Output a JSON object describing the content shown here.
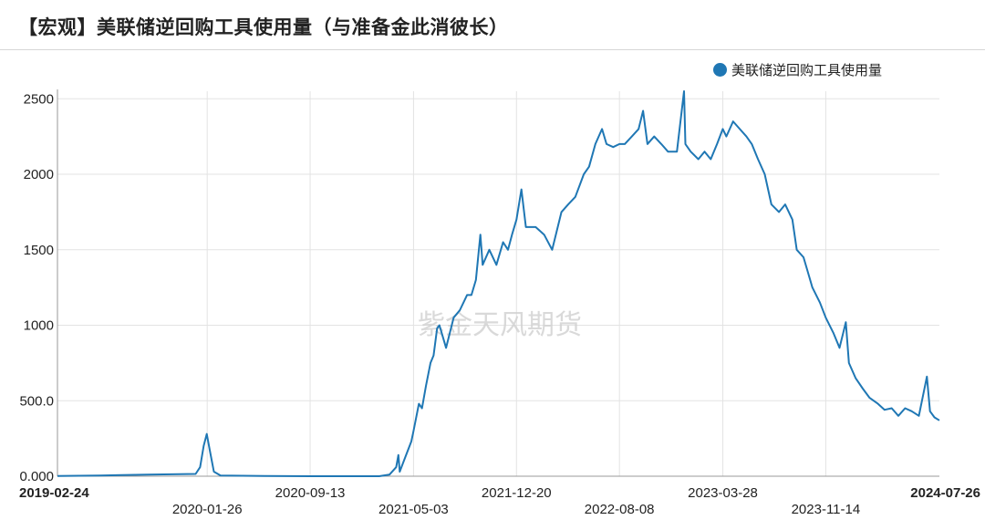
{
  "title": "【宏观】美联储逆回购工具使用量（与准备金此消彼长）",
  "watermark": "紫金天风期货",
  "colors": {
    "line": "#1f77b4",
    "grid": "#e3e3e3",
    "axis": "#999999"
  },
  "chart_data": {
    "type": "line",
    "series": [
      {
        "name": "美联储逆回购工具使用量",
        "points": [
          [
            "2019-02-24",
            2
          ],
          [
            "2019-06-01",
            5
          ],
          [
            "2019-09-15",
            10
          ],
          [
            "2019-12-31",
            15
          ],
          [
            "2020-01-10",
            60
          ],
          [
            "2020-01-18",
            200
          ],
          [
            "2020-01-25",
            280
          ],
          [
            "2020-02-01",
            170
          ],
          [
            "2020-02-10",
            30
          ],
          [
            "2020-02-25",
            5
          ],
          [
            "2020-06-01",
            1
          ],
          [
            "2020-09-13",
            0
          ],
          [
            "2020-12-01",
            0
          ],
          [
            "2021-02-15",
            0
          ],
          [
            "2021-03-10",
            10
          ],
          [
            "2021-03-25",
            60
          ],
          [
            "2021-03-30",
            140
          ],
          [
            "2021-04-02",
            30
          ],
          [
            "2021-04-15",
            130
          ],
          [
            "2021-04-28",
            230
          ],
          [
            "2021-05-03",
            300
          ],
          [
            "2021-05-15",
            480
          ],
          [
            "2021-05-22",
            450
          ],
          [
            "2021-05-31",
            600
          ],
          [
            "2021-06-10",
            750
          ],
          [
            "2021-06-17",
            800
          ],
          [
            "2021-06-25",
            980
          ],
          [
            "2021-06-30",
            1000
          ],
          [
            "2021-07-15",
            850
          ],
          [
            "2021-08-01",
            1050
          ],
          [
            "2021-08-15",
            1100
          ],
          [
            "2021-08-31",
            1200
          ],
          [
            "2021-09-10",
            1200
          ],
          [
            "2021-09-20",
            1300
          ],
          [
            "2021-09-30",
            1600
          ],
          [
            "2021-10-05",
            1400
          ],
          [
            "2021-10-20",
            1500
          ],
          [
            "2021-11-05",
            1400
          ],
          [
            "2021-11-20",
            1550
          ],
          [
            "2021-12-01",
            1500
          ],
          [
            "2021-12-10",
            1600
          ],
          [
            "2021-12-20",
            1700
          ],
          [
            "2021-12-31",
            1900
          ],
          [
            "2022-01-10",
            1650
          ],
          [
            "2022-02-01",
            1650
          ],
          [
            "2022-02-20",
            1600
          ],
          [
            "2022-03-10",
            1500
          ],
          [
            "2022-03-31",
            1750
          ],
          [
            "2022-04-15",
            1800
          ],
          [
            "2022-05-01",
            1850
          ],
          [
            "2022-05-20",
            2000
          ],
          [
            "2022-06-01",
            2050
          ],
          [
            "2022-06-15",
            2200
          ],
          [
            "2022-06-30",
            2300
          ],
          [
            "2022-07-10",
            2200
          ],
          [
            "2022-07-25",
            2180
          ],
          [
            "2022-08-08",
            2200
          ],
          [
            "2022-08-20",
            2200
          ],
          [
            "2022-09-05",
            2250
          ],
          [
            "2022-09-20",
            2300
          ],
          [
            "2022-09-30",
            2420
          ],
          [
            "2022-10-10",
            2200
          ],
          [
            "2022-10-25",
            2250
          ],
          [
            "2022-11-10",
            2200
          ],
          [
            "2022-11-25",
            2150
          ],
          [
            "2022-12-15",
            2150
          ],
          [
            "2022-12-31",
            2550
          ],
          [
            "2023-01-03",
            2200
          ],
          [
            "2023-01-15",
            2150
          ],
          [
            "2023-02-01",
            2100
          ],
          [
            "2023-02-15",
            2150
          ],
          [
            "2023-03-01",
            2100
          ],
          [
            "2023-03-15",
            2200
          ],
          [
            "2023-03-28",
            2300
          ],
          [
            "2023-04-05",
            2250
          ],
          [
            "2023-04-20",
            2350
          ],
          [
            "2023-05-05",
            2300
          ],
          [
            "2023-05-20",
            2250
          ],
          [
            "2023-06-01",
            2200
          ],
          [
            "2023-06-15",
            2100
          ],
          [
            "2023-06-30",
            2000
          ],
          [
            "2023-07-15",
            1800
          ],
          [
            "2023-08-01",
            1750
          ],
          [
            "2023-08-15",
            1800
          ],
          [
            "2023-08-31",
            1700
          ],
          [
            "2023-09-10",
            1500
          ],
          [
            "2023-09-25",
            1450
          ],
          [
            "2023-10-05",
            1350
          ],
          [
            "2023-10-15",
            1250
          ],
          [
            "2023-11-01",
            1150
          ],
          [
            "2023-11-14",
            1050
          ],
          [
            "2023-12-01",
            950
          ],
          [
            "2023-12-15",
            850
          ],
          [
            "2023-12-29",
            1020
          ],
          [
            "2024-01-05",
            750
          ],
          [
            "2024-01-20",
            650
          ],
          [
            "2024-02-05",
            580
          ],
          [
            "2024-02-20",
            520
          ],
          [
            "2024-03-10",
            480
          ],
          [
            "2024-03-25",
            440
          ],
          [
            "2024-04-10",
            450
          ],
          [
            "2024-04-25",
            400
          ],
          [
            "2024-05-10",
            450
          ],
          [
            "2024-05-25",
            430
          ],
          [
            "2024-06-10",
            400
          ],
          [
            "2024-06-28",
            660
          ],
          [
            "2024-07-05",
            430
          ],
          [
            "2024-07-15",
            390
          ],
          [
            "2024-07-26",
            370
          ]
        ]
      }
    ],
    "xlabel": "",
    "ylabel": "",
    "xlim": [
      "2019-02-24",
      "2024-07-26"
    ],
    "ylim": [
      0,
      2550
    ],
    "y_ticks": [
      "0.000",
      "500.0",
      "1000",
      "1500",
      "2000",
      "2500"
    ],
    "y_tick_values": [
      0,
      500,
      1000,
      1500,
      2000,
      2500
    ],
    "x_ticks_row1": [
      "2019-02-24",
      "2020-09-13",
      "2021-12-20",
      "2023-03-28",
      "2024-07-26"
    ],
    "x_ticks_row2": [
      "2020-01-26",
      "2021-05-03",
      "2022-08-08",
      "2023-11-14"
    ],
    "x_ticks_bold": [
      "2019-02-24",
      "2024-07-26"
    ],
    "grid": true,
    "legend": "top-right"
  }
}
